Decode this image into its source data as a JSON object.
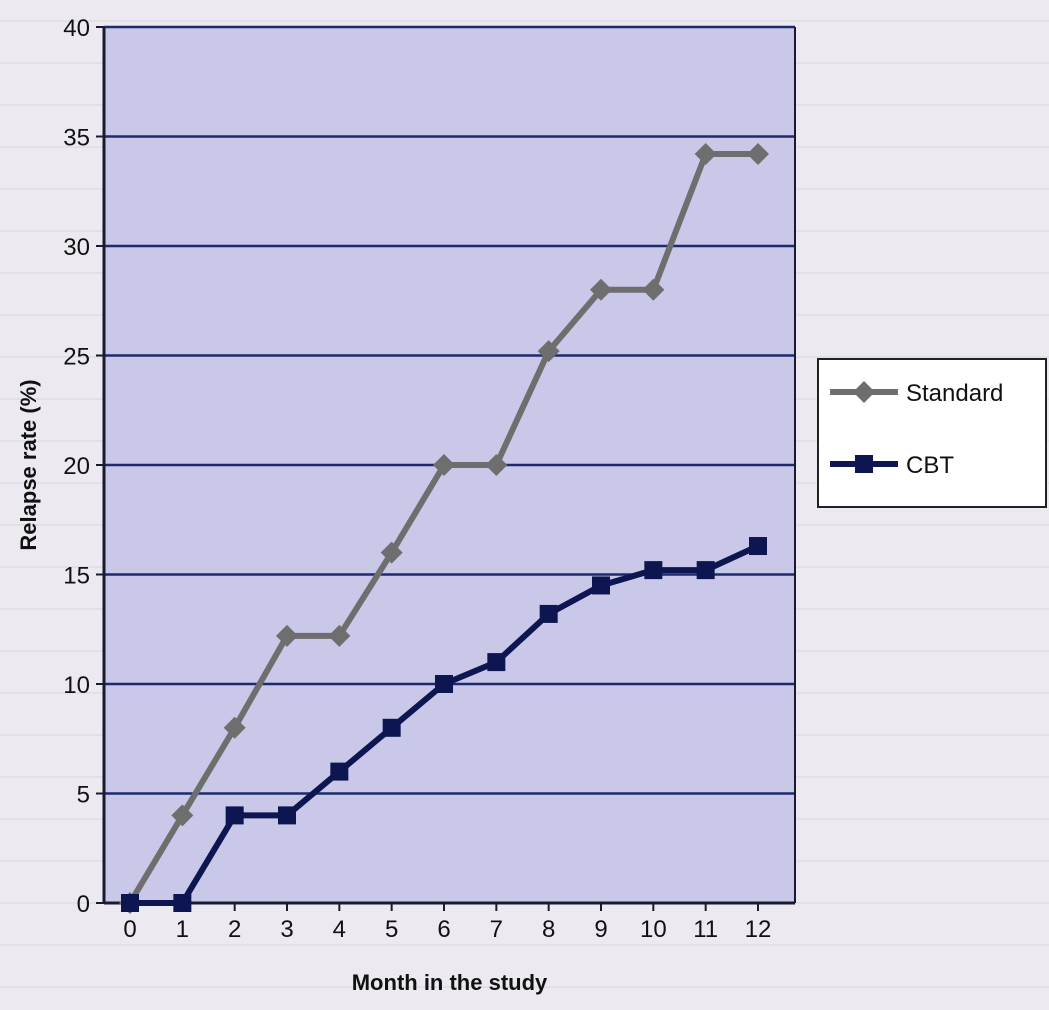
{
  "chart_data": {
    "type": "line",
    "xlabel": "Month in the study",
    "ylabel": "Relapse rate (%)",
    "x": [
      0,
      1,
      2,
      3,
      4,
      5,
      6,
      7,
      8,
      9,
      10,
      11,
      12
    ],
    "xlim": [
      0,
      12
    ],
    "ylim": [
      0,
      40
    ],
    "yticks": [
      0,
      5,
      10,
      15,
      20,
      25,
      30,
      35,
      40
    ],
    "grid": true,
    "legend_position": "right",
    "series": [
      {
        "name": "Standard",
        "marker": "diamond",
        "color": "#6e6e6e",
        "values": [
          0,
          4,
          8,
          12.2,
          12.2,
          16,
          20,
          20,
          25.2,
          28,
          28,
          34.2,
          34.2
        ]
      },
      {
        "name": "CBT",
        "marker": "square",
        "color": "#0d1650",
        "values": [
          0,
          0,
          4,
          4,
          6,
          8,
          10,
          11,
          13.2,
          14.5,
          15.2,
          15.2,
          16.3
        ]
      }
    ]
  },
  "colors": {
    "plot_background": "#c9c8e8",
    "gridline": "#1f2a6e",
    "page_background": "#eceaf0"
  }
}
